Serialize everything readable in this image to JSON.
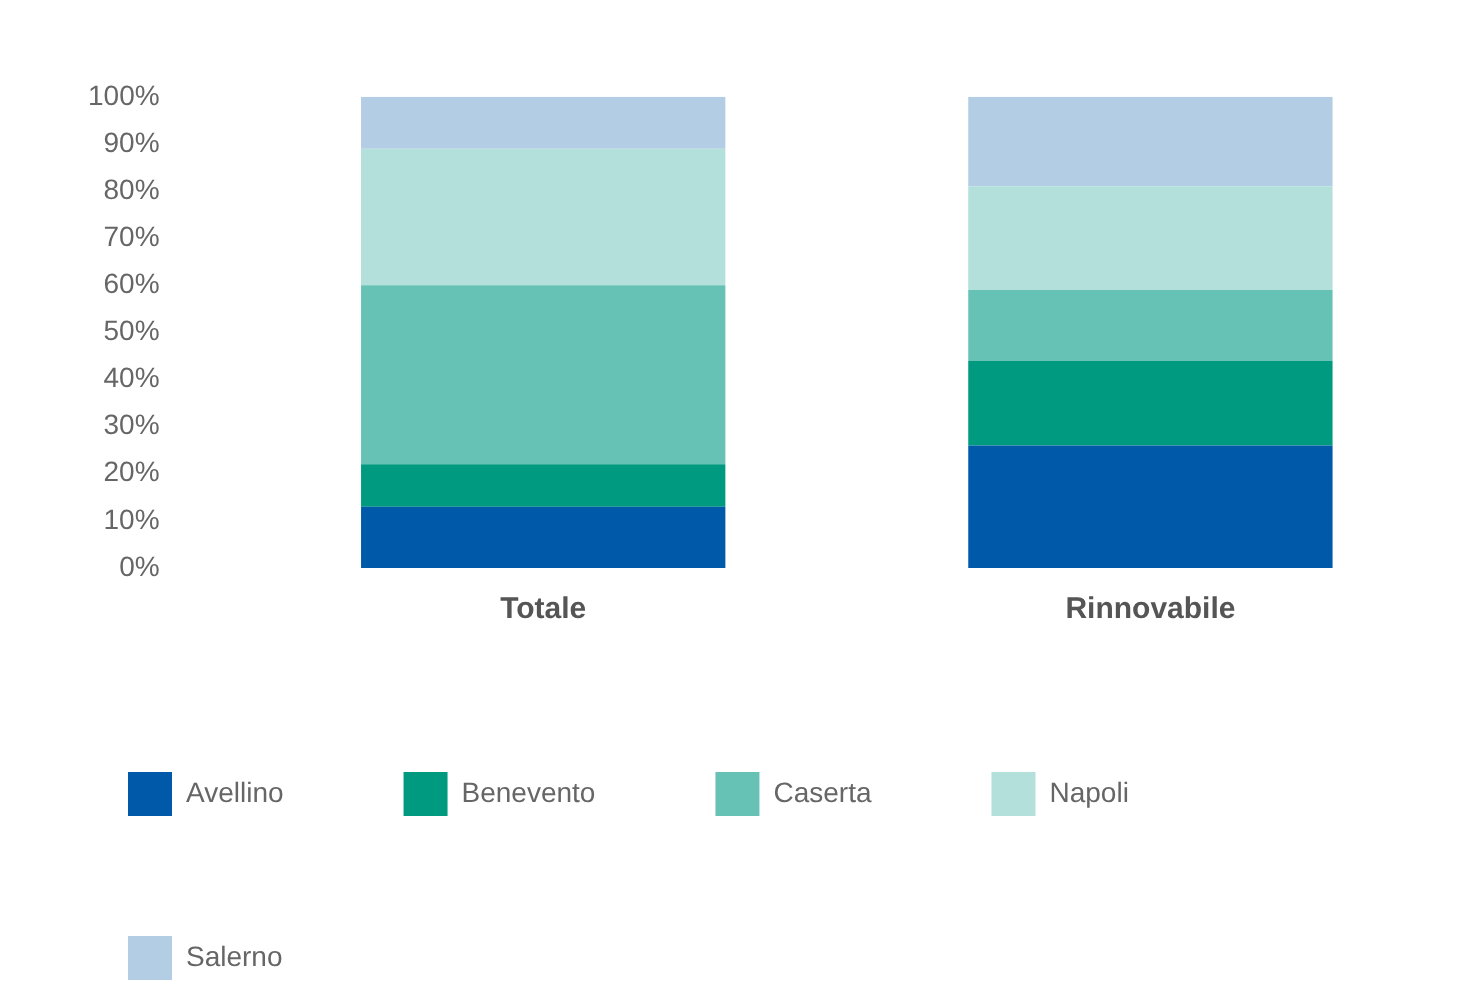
{
  "chart_data": {
    "type": "bar",
    "stacked": true,
    "categories": [
      "Totale",
      "Rinnovabile"
    ],
    "series": [
      {
        "name": "Avellino",
        "color": "#005aa9",
        "values": [
          13,
          26
        ]
      },
      {
        "name": "Benevento",
        "color": "#009a80",
        "values": [
          9,
          18
        ]
      },
      {
        "name": "Caserta",
        "color": "#66c2b4",
        "values": [
          38,
          15
        ]
      },
      {
        "name": "Napoli",
        "color": "#b3e0da",
        "values": [
          29,
          22
        ]
      },
      {
        "name": "Salerno",
        "color": "#b3cde5",
        "values": [
          11,
          19
        ]
      }
    ],
    "ylim": [
      0,
      100
    ],
    "yticks": [
      {
        "value": 0,
        "label": "0%"
      },
      {
        "value": 10,
        "label": "10%"
      },
      {
        "value": 20,
        "label": "20%"
      },
      {
        "value": 30,
        "label": "30%"
      },
      {
        "value": 40,
        "label": "40%"
      },
      {
        "value": 50,
        "label": "50%"
      },
      {
        "value": 60,
        "label": "60%"
      },
      {
        "value": 70,
        "label": "70%"
      },
      {
        "value": 80,
        "label": "80%"
      },
      {
        "value": 90,
        "label": "90%"
      },
      {
        "value": 100,
        "label": "100%"
      }
    ],
    "grid": false,
    "legend": "bottom"
  }
}
